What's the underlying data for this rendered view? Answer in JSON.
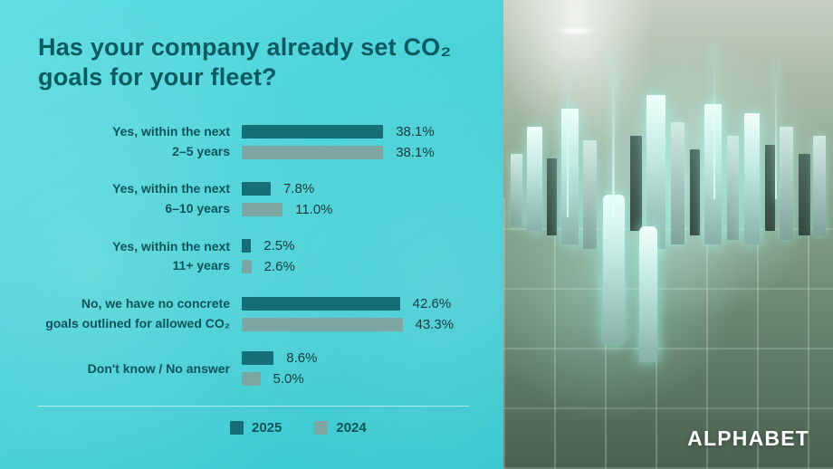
{
  "brand": {
    "logo": "ALPHABET"
  },
  "colors": {
    "background": "#47d1d6",
    "title": "#0a5a63",
    "bar_2025": "#156e78",
    "bar_2024": "#7da5a1",
    "divider": "rgba(255,255,255,0.55)"
  },
  "chart_data": {
    "type": "bar",
    "orientation": "horizontal",
    "title": "Has your company already set CO₂ goals for your fleet?",
    "categories": [
      [
        "Yes, within the next",
        "2–5 years"
      ],
      [
        "Yes, within the next",
        "6–10 years"
      ],
      [
        "Yes, within the next",
        "11+ years"
      ],
      [
        "No, we have no concrete",
        "goals outlined for allowed CO₂"
      ],
      [
        "Don't know / No answer"
      ]
    ],
    "series": [
      {
        "name": "2025",
        "color": "#156e78",
        "values": [
          38.1,
          7.8,
          2.5,
          42.6,
          8.6
        ],
        "labels": [
          "38.1%",
          "7.8%",
          "2.5%",
          "42.6%",
          "8.6%"
        ]
      },
      {
        "name": "2024",
        "color": "#7da5a1",
        "values": [
          38.1,
          11.0,
          2.6,
          43.3,
          5.0
        ],
        "labels": [
          "38.1%",
          "11.0%",
          "2.6%",
          "43.3%",
          "5.0%"
        ]
      }
    ],
    "xlim": [
      0,
      50
    ],
    "grid": false,
    "legend_position": "bottom"
  }
}
